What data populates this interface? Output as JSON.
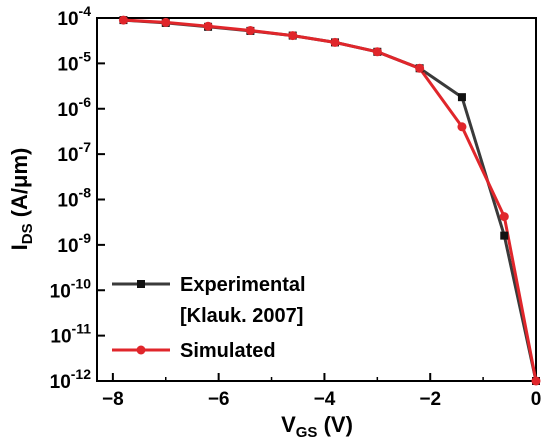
{
  "chart_data": {
    "type": "line",
    "ylabel": {
      "main": "I",
      "sub": "DS",
      "unit": " (A/μm)"
    },
    "xlabel": {
      "main": "V",
      "sub": "GS",
      "unit": " (V)"
    },
    "xlim": [
      -8.3,
      0
    ],
    "ylim_exponent": [
      -12,
      -4
    ],
    "y_scale": "log",
    "x_ticks": [
      -8,
      -6,
      -4,
      -2,
      0
    ],
    "x_tick_labels": [
      "−8",
      "−6",
      "−4",
      "−2",
      "0"
    ],
    "y_ticks": [
      -12,
      -11,
      -10,
      -9,
      -8,
      -7,
      -6,
      -5,
      -4
    ],
    "y_tick_base": "10",
    "y_tick_exps": [
      "-12",
      "-11",
      "-10",
      "-9",
      "-8",
      "-7",
      "-6",
      "-5",
      "-4"
    ],
    "legend_position": "lower-left",
    "series": [
      {
        "name": "Experimental",
        "name_line2": "[Klauk. 2007]",
        "color": "#3a3a3a",
        "marker": "square",
        "x": [
          -7.8,
          -7.0,
          -6.2,
          -5.4,
          -4.6,
          -3.8,
          -3.0,
          -2.2,
          -1.4,
          -0.6,
          0.0
        ],
        "y": [
          9e-05,
          7.8e-05,
          6.4e-05,
          5.2e-05,
          4.1e-05,
          2.9e-05,
          1.8e-05,
          7.8e-06,
          1.8e-06,
          1.6e-09,
          1e-12
        ]
      },
      {
        "name": "Simulated",
        "color": "#e0262b",
        "marker": "circle",
        "x": [
          -7.8,
          -7.0,
          -6.2,
          -5.4,
          -4.6,
          -3.8,
          -3.0,
          -2.2,
          -1.4,
          -0.6,
          0.0
        ],
        "y": [
          9e-05,
          8e-05,
          6.6e-05,
          5.3e-05,
          4.1e-05,
          2.9e-05,
          1.8e-05,
          7.8e-06,
          4e-07,
          4.2e-09,
          1e-12
        ]
      }
    ]
  }
}
